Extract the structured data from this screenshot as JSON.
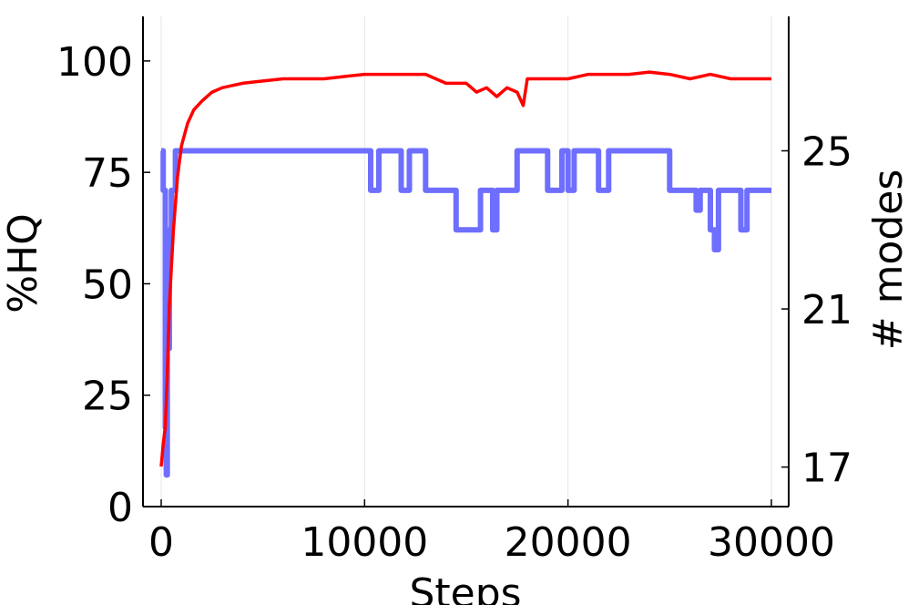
{
  "chart_data": {
    "type": "line",
    "xlabel": "Steps",
    "ylabel_left": "%HQ",
    "ylabel_right": "# modes",
    "xlim": [
      0,
      30000
    ],
    "ylim_left": [
      0,
      110
    ],
    "ylim_right": [
      16,
      28.4
    ],
    "x_ticks": [
      0,
      10000,
      20000,
      30000
    ],
    "y_ticks_left": [
      0,
      25,
      50,
      75,
      100
    ],
    "y_ticks_right": [
      17,
      21,
      25
    ],
    "grid": "vertical",
    "legend": "none",
    "series": [
      {
        "axis": "left",
        "color": "#ff0000",
        "x": [
          0,
          100,
          200,
          300,
          400,
          600,
          800,
          1000,
          1300,
          1600,
          2000,
          2500,
          3000,
          4000,
          5000,
          6000,
          7000,
          8000,
          9000,
          10000,
          11000,
          12000,
          13000,
          14000,
          15000,
          15500,
          16000,
          16500,
          17000,
          17500,
          17800,
          18000,
          19000,
          20000,
          21000,
          22000,
          23000,
          24000,
          25000,
          26000,
          27000,
          28000,
          29000,
          30000
        ],
        "y": [
          9,
          14,
          18,
          30,
          45,
          62,
          74,
          81,
          86,
          89,
          91,
          93,
          94,
          95,
          95.5,
          96,
          96,
          96,
          96.5,
          97,
          97,
          97,
          97,
          95,
          95,
          93,
          94,
          92,
          94,
          93,
          90,
          96,
          96,
          96,
          97,
          97,
          97,
          97.5,
          97,
          96,
          97,
          96,
          96,
          96
        ]
      },
      {
        "axis": "right",
        "color": "#6666ff",
        "x": [
          0,
          100,
          200,
          250,
          300,
          400,
          500,
          700,
          1000,
          2000,
          5000,
          10000,
          10300,
          10500,
          10700,
          11000,
          11800,
          12000,
          12200,
          13000,
          14000,
          14500,
          15000,
          15500,
          15700,
          16000,
          16300,
          16500,
          17000,
          17500,
          18500,
          19000,
          19200,
          19700,
          20000,
          20300,
          21000,
          21500,
          22000,
          24500,
          25000,
          25500,
          26000,
          26300,
          26500,
          27000,
          27200,
          27400,
          27600,
          28000,
          28500,
          28800,
          29000,
          29500,
          30000
        ],
        "y": [
          25,
          24,
          18,
          16.8,
          20,
          23,
          24,
          25,
          25,
          25,
          25,
          25,
          24,
          24,
          25,
          25,
          24,
          24,
          25,
          24,
          24,
          23,
          23,
          23,
          24,
          24,
          23,
          24,
          24,
          25,
          25,
          24,
          24,
          25,
          24,
          25,
          25,
          24,
          25,
          25,
          24,
          24,
          24,
          23.5,
          24,
          23,
          22.5,
          24,
          24,
          24,
          23,
          24,
          24,
          24,
          24
        ]
      }
    ]
  }
}
